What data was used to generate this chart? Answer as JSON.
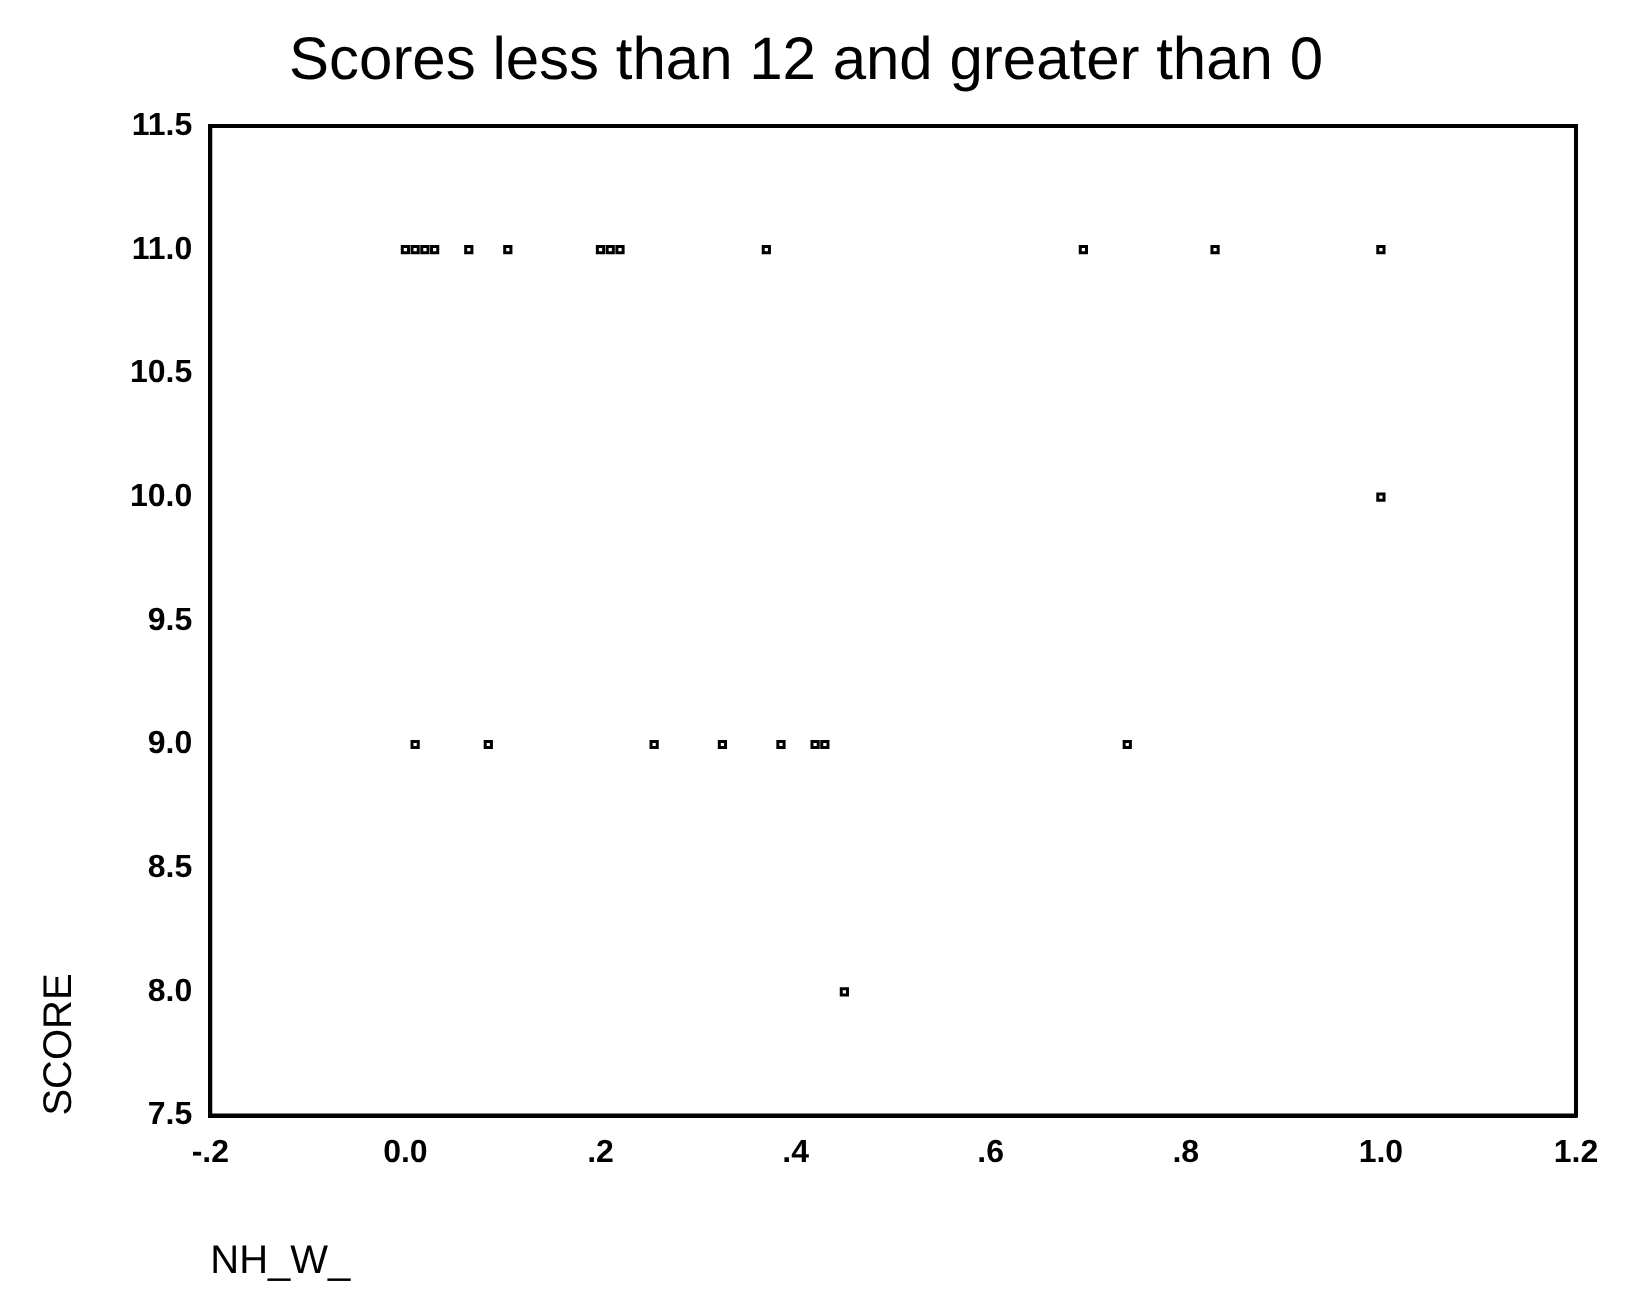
{
  "chart_data": {
    "type": "scatter",
    "title": "Scores less than 12 and greater than 0",
    "xlabel": "NH_W_",
    "ylabel": "SCORE",
    "x": [
      0.0,
      0.01,
      0.02,
      0.03,
      0.065,
      0.105,
      0.2,
      0.21,
      0.22,
      0.37,
      0.695,
      0.83,
      1.0,
      1.0,
      0.01,
      0.085,
      0.255,
      0.325,
      0.385,
      0.42,
      0.43,
      0.74,
      0.45
    ],
    "series": [
      {
        "color": "#000000",
        "values": [
          11,
          11,
          11,
          11,
          11,
          11,
          11,
          11,
          11,
          11,
          11,
          11,
          11,
          10,
          9,
          9,
          9,
          9,
          9,
          9,
          9,
          9,
          8
        ]
      }
    ],
    "xlim": [
      -0.2,
      1.2
    ],
    "xticks": [
      {
        "value": -0.2,
        "label": "-.2"
      },
      {
        "value": 0,
        "label": "0.0"
      },
      {
        "value": 0.2,
        "label": ".2"
      },
      {
        "value": 0.4,
        "label": ".4"
      },
      {
        "value": 0.6,
        "label": ".6"
      },
      {
        "value": 0.8,
        "label": ".8"
      },
      {
        "value": 1.0,
        "label": "1.0"
      },
      {
        "value": 1.2,
        "label": "1.2"
      }
    ],
    "ylim": [
      7.5,
      11.5
    ],
    "yticks": [
      {
        "value": 7.5,
        "label": "7.5"
      },
      {
        "value": 8,
        "label": "8.0"
      },
      {
        "value": 8.5,
        "label": "8.5"
      },
      {
        "value": 9,
        "label": "9.0"
      },
      {
        "value": 9.5,
        "label": "9.5"
      },
      {
        "value": 10,
        "label": "10.0"
      },
      {
        "value": 10.5,
        "label": "10.5"
      },
      {
        "value": 11,
        "label": "11.0"
      },
      {
        "value": 11.5,
        "label": "11.5"
      }
    ],
    "grid": false,
    "legend": false,
    "marker": "square"
  }
}
